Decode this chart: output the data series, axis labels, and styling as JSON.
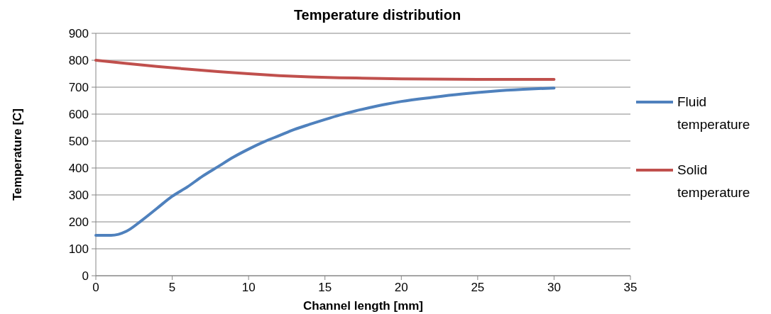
{
  "chart_data": {
    "type": "line",
    "title": "Temperature distribution",
    "xlabel": "Channel length [mm]",
    "ylabel": "Temperature [C]",
    "xlim": [
      0,
      35
    ],
    "xticks": [
      0,
      5,
      10,
      15,
      20,
      25,
      30,
      35
    ],
    "ylim": [
      0,
      900
    ],
    "yticks": [
      0,
      100,
      200,
      300,
      400,
      500,
      600,
      700,
      800,
      900
    ],
    "grid": "y",
    "legend": "right",
    "marker": "none",
    "line_style": "solid",
    "series": [
      {
        "name": "Fluid temperature",
        "color": "#4f81bd",
        "x": [
          0,
          1,
          2,
          3,
          4,
          5,
          6,
          7,
          8,
          9,
          10,
          11,
          12,
          13,
          14,
          15,
          16,
          17,
          18,
          19,
          20,
          22,
          24,
          26,
          28,
          30
        ],
        "values": [
          150,
          150,
          165,
          205,
          250,
          295,
          330,
          370,
          405,
          440,
          470,
          497,
          520,
          543,
          562,
          580,
          597,
          612,
          625,
          637,
          647,
          662,
          675,
          685,
          692,
          697
        ]
      },
      {
        "name": "Solid temperature",
        "color": "#c0504d",
        "x": [
          0,
          2,
          4,
          6,
          8,
          10,
          12,
          14,
          16,
          18,
          20,
          25,
          30
        ],
        "values": [
          800,
          788,
          777,
          767,
          758,
          750,
          743,
          738,
          735,
          733,
          731,
          729,
          729
        ]
      }
    ]
  }
}
